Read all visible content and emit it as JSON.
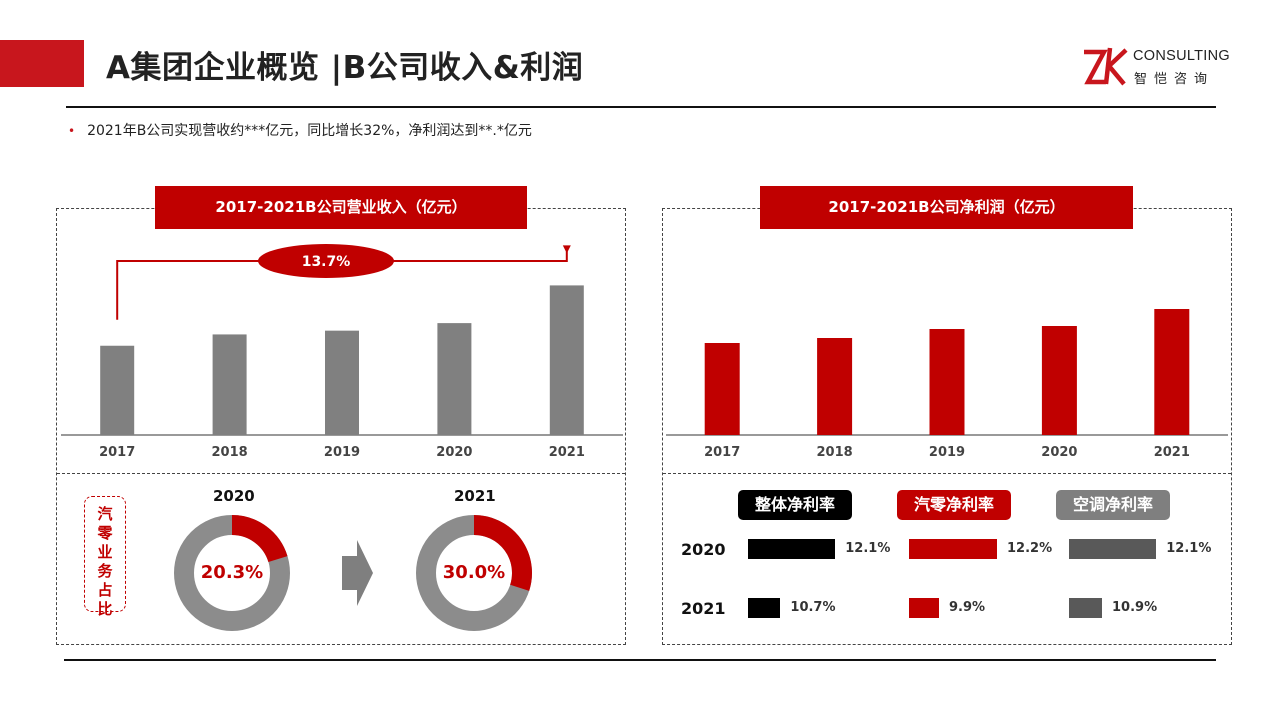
{
  "header": {
    "title": "A集团企业概览 |B公司收入&利润",
    "logo_en": "CONSULTING",
    "logo_cn": "智恺咨询",
    "bullet": "2021年B公司实现营收约***亿元，同比增长32%，净利润达到**.*亿元"
  },
  "colors": {
    "accent": "#c00000",
    "gray": "#808080",
    "dark_gray": "#595959",
    "black": "#000000"
  },
  "chart_data": [
    {
      "type": "bar",
      "title": "2017-2021B公司营业收入（亿元）",
      "categories": [
        "2017",
        "2018",
        "2019",
        "2020",
        "2021"
      ],
      "values": [
        71,
        80,
        83,
        89,
        119
      ],
      "ylim": [
        0,
        140
      ],
      "annotation": "13.7%",
      "color": "#808080"
    },
    {
      "type": "bar",
      "title": "2017-2021B公司净利润（亿元）",
      "categories": [
        "2017",
        "2018",
        "2019",
        "2020",
        "2021"
      ],
      "values": [
        92,
        97,
        106,
        109,
        126
      ],
      "ylim": [
        0,
        160
      ],
      "color": "#c00000"
    },
    {
      "type": "pie",
      "title": "汽零业务占比",
      "donuts": [
        {
          "year": "2020",
          "value": 20.3,
          "label": "20.3%"
        },
        {
          "year": "2021",
          "value": 30.0,
          "label": "30.0%"
        }
      ]
    },
    {
      "type": "bar",
      "title": "",
      "series": [
        {
          "name": "整体净利率",
          "color": "#000000",
          "values": [
            12.1,
            10.7
          ],
          "labels": [
            "12.1%",
            "10.7%"
          ]
        },
        {
          "name": "汽零净利率",
          "color": "#c00000",
          "values": [
            12.2,
            9.9
          ],
          "labels": [
            "12.2%",
            "9.9%"
          ]
        },
        {
          "name": "空调净利率",
          "color": "#595959",
          "values": [
            12.1,
            10.9
          ],
          "labels": [
            "12.1%",
            "10.9%"
          ]
        }
      ],
      "categories": [
        "2020",
        "2021"
      ]
    }
  ]
}
